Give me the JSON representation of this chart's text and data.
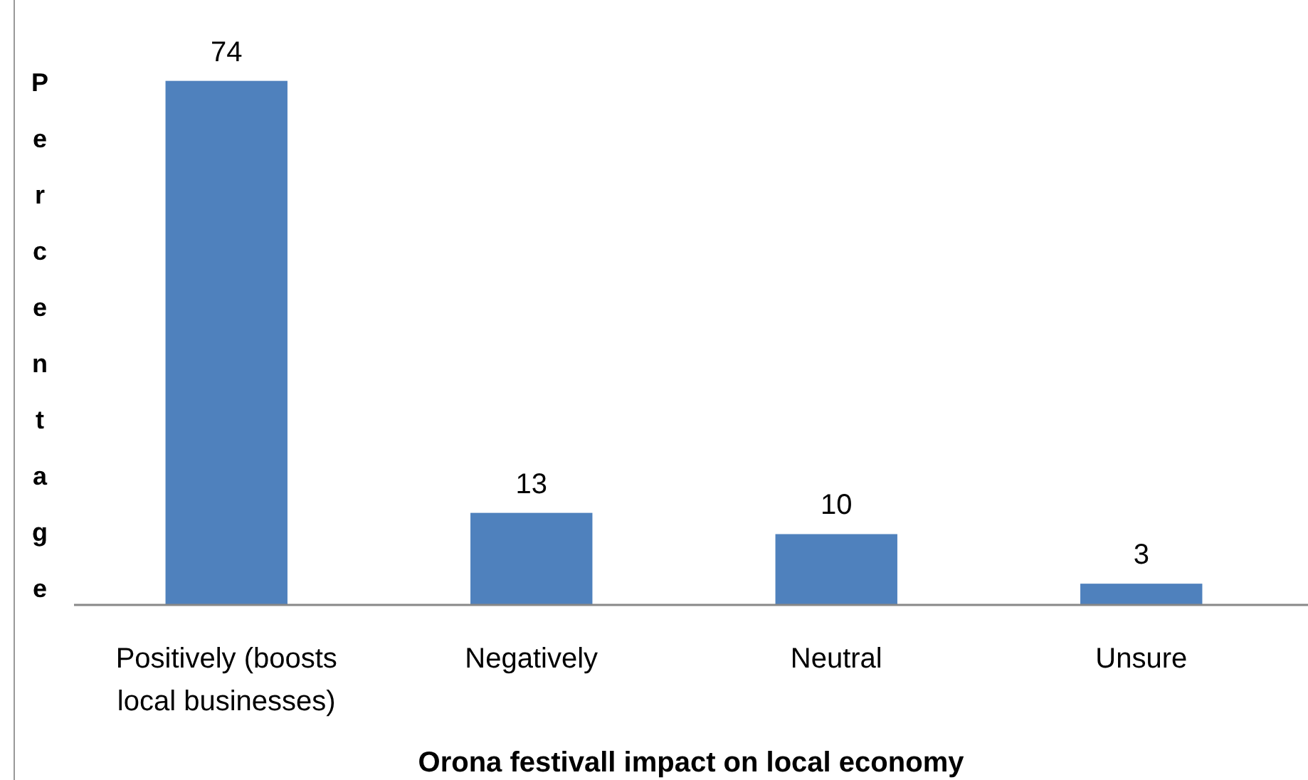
{
  "chart_data": {
    "type": "bar",
    "title": "Orona festivall impact on local economy",
    "ylabel": "Percentage",
    "categories": [
      "Positively (boosts local businesses)",
      "Negatively",
      "Neutral",
      "Unsure"
    ],
    "values": [
      74,
      13,
      10,
      3
    ],
    "color": "#4f81bd",
    "data_labels": true,
    "grid": false
  }
}
